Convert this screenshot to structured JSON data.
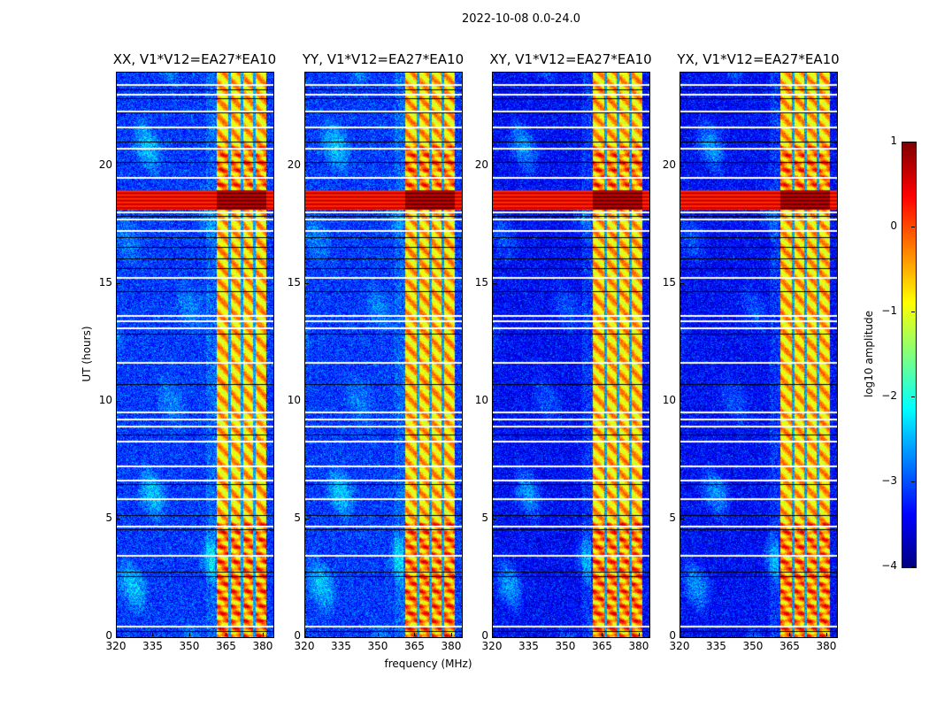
{
  "chart_data": {
    "type": "heatmap",
    "title": "2022-10-08 0.0-24.0",
    "xlabel": "frequency (MHz)",
    "ylabel": "UT (hours)",
    "xlim": [
      320,
      384
    ],
    "ylim": [
      0,
      24
    ],
    "xticks": [
      320,
      335,
      350,
      365,
      380
    ],
    "yticks": [
      0,
      5,
      10,
      15,
      20
    ],
    "colormap": "jet",
    "colorbar": {
      "label": "log10 amplitude",
      "range": [
        -4,
        1
      ],
      "ticks": [
        "1",
        "0",
        "−1",
        "−2",
        "−3",
        "−4"
      ]
    },
    "panels": [
      {
        "title": "XX, V1*V12=EA27*EA10",
        "background": -3.1
      },
      {
        "title": "YY, V1*V12=EA27*EA10",
        "background": -3.1
      },
      {
        "title": "XY, V1*V12=EA27*EA10",
        "background": -3.35
      },
      {
        "title": "YX, V1*V12=EA27*EA10",
        "background": -3.35
      }
    ],
    "features": {
      "rfi_band_mhz": [
        360.5,
        381
      ],
      "rfi_level": -0.6,
      "rfi_gaps_mhz": [
        366,
        371,
        376
      ],
      "strong_rfi_hours": [
        18.2,
        19.0
      ],
      "strong_rfi_level": 0.4,
      "flagged_hours_white": [
        23.5,
        23.1,
        22.4,
        21.7,
        20.8,
        19.55,
        18.1,
        17.8,
        17.3,
        15.3,
        13.7,
        13.45,
        13.15,
        11.7,
        9.6,
        9.3,
        9.0,
        8.35,
        7.3,
        6.7,
        5.9,
        4.75,
        3.5,
        0.5
      ],
      "flagged_hours_black": [
        23.3,
        22.9,
        22.3,
        21.05,
        20.2,
        17.9,
        17.0,
        16.6,
        16.1,
        15.7,
        14.7,
        12.9,
        10.75,
        8.6,
        6.5,
        5.2,
        4.6,
        2.8,
        2.6,
        0.25
      ]
    }
  }
}
